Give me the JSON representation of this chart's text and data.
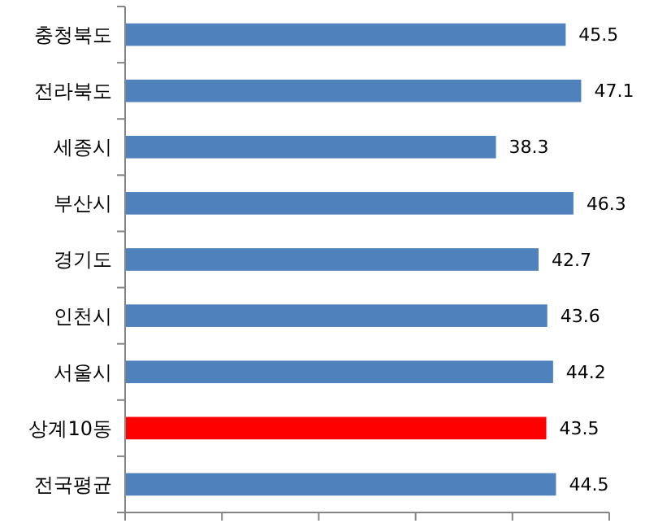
{
  "chart_data": {
    "type": "bar",
    "orientation": "horizontal",
    "categories": [
      "충청북도",
      "전라북도",
      "세종시",
      "부산시",
      "경기도",
      "인천시",
      "서울시",
      "상계10동",
      "전국평균"
    ],
    "values": [
      45.5,
      47.1,
      38.3,
      46.3,
      42.7,
      43.6,
      44.2,
      43.5,
      44.5
    ],
    "colors": [
      "#4f81bd",
      "#4f81bd",
      "#4f81bd",
      "#4f81bd",
      "#4f81bd",
      "#4f81bd",
      "#4f81bd",
      "#ff0000",
      "#4f81bd"
    ],
    "xlim": [
      0,
      50
    ],
    "xticks": [
      {
        "value": 0,
        "label": null
      },
      {
        "value": 10,
        "label": null
      },
      {
        "value": 20,
        "label": null
      },
      {
        "value": 30,
        "label": null
      },
      {
        "value": 40,
        "label": null
      },
      {
        "value": 50,
        "label": null
      }
    ],
    "data_labels": true
  }
}
